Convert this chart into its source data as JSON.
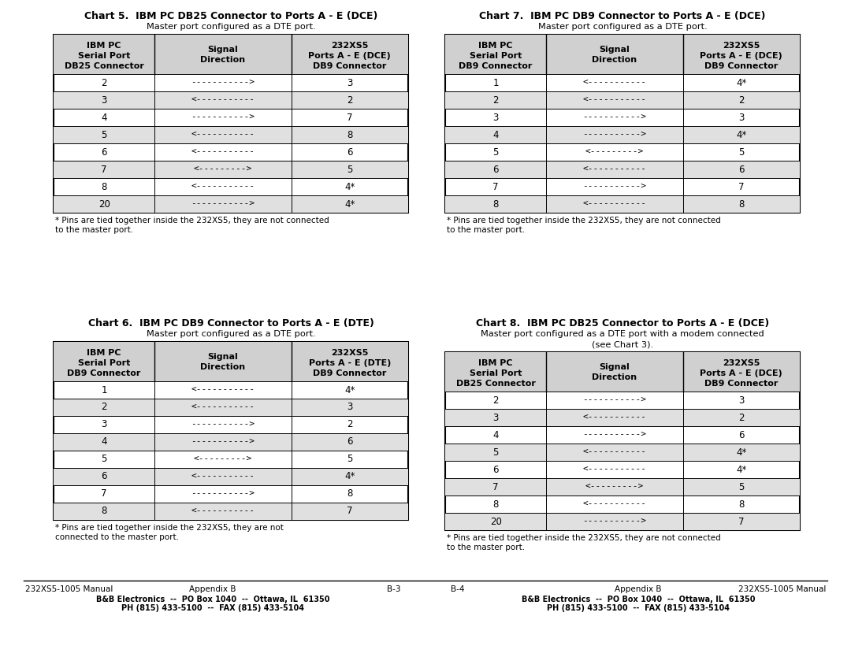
{
  "charts": [
    {
      "title": "Chart 5.  IBM PC DB25 Connector to Ports A - E (DCE)",
      "subtitle": "Master port configured as a DTE port.",
      "subtitle2": "",
      "col1_header": [
        "IBM PC",
        "Serial Port",
        "DB25 Connector"
      ],
      "col2_header": [
        "Signal",
        "Direction"
      ],
      "col3_header": [
        "232XS5",
        "Ports A - E (DCE)",
        "DB9 Connector"
      ],
      "rows": [
        [
          "2",
          "----------->",
          "3"
        ],
        [
          "3",
          "<-----------",
          "2"
        ],
        [
          "4",
          "----------->",
          "7"
        ],
        [
          "5",
          "<-----------",
          "8"
        ],
        [
          "6",
          "<-----------",
          "6"
        ],
        [
          "7",
          "<--------->",
          "5"
        ],
        [
          "8",
          "<-----------",
          "4*"
        ],
        [
          "20",
          "----------->",
          "4*"
        ]
      ],
      "footnote": "* Pins are tied together inside the 232XS5, they are not connected\nto the master port."
    },
    {
      "title": "Chart 6.  IBM PC DB9 Connector to Ports A - E (DTE)",
      "subtitle": "Master port configured as a DTE port.",
      "subtitle2": "",
      "col1_header": [
        "IBM PC",
        "Serial Port",
        "DB9 Connector"
      ],
      "col2_header": [
        "Signal",
        "Direction"
      ],
      "col3_header": [
        "232XS5",
        "Ports A - E (DTE)",
        "DB9 Connector"
      ],
      "rows": [
        [
          "1",
          "<-----------",
          "4*"
        ],
        [
          "2",
          "<-----------",
          "3"
        ],
        [
          "3",
          "----------->",
          "2"
        ],
        [
          "4",
          "----------->",
          "6"
        ],
        [
          "5",
          "<--------->",
          "5"
        ],
        [
          "6",
          "<-----------",
          "4*"
        ],
        [
          "7",
          "----------->",
          "8"
        ],
        [
          "8",
          "<-----------",
          "7"
        ]
      ],
      "footnote": "* Pins are tied together inside the 232XS5, they are not\nconnected to the master port."
    },
    {
      "title": "Chart 7.  IBM PC DB9 Connector to Ports A - E (DCE)",
      "subtitle": "Master port configured as a DTE port.",
      "subtitle2": "",
      "col1_header": [
        "IBM PC",
        "Serial Port",
        "DB9 Connector"
      ],
      "col2_header": [
        "Signal",
        "Direction"
      ],
      "col3_header": [
        "232XS5",
        "Ports A - E (DCE)",
        "DB9 Connector"
      ],
      "rows": [
        [
          "1",
          "<-----------",
          "4*"
        ],
        [
          "2",
          "<-----------",
          "2"
        ],
        [
          "3",
          "----------->",
          "3"
        ],
        [
          "4",
          "----------->",
          "4*"
        ],
        [
          "5",
          "<--------->",
          "5"
        ],
        [
          "6",
          "<-----------",
          "6"
        ],
        [
          "7",
          "----------->",
          "7"
        ],
        [
          "8",
          "<-----------",
          "8"
        ]
      ],
      "footnote": "* Pins are tied together inside the 232XS5, they are not connected\nto the master port."
    },
    {
      "title": "Chart 8.  IBM PC DB25 Connector to Ports A - E (DCE)",
      "subtitle": "Master port configured as a DTE port with a modem connected",
      "subtitle2": "(see Chart 3).",
      "col1_header": [
        "IBM PC",
        "Serial Port",
        "DB25 Connector"
      ],
      "col2_header": [
        "Signal",
        "Direction"
      ],
      "col3_header": [
        "232XS5",
        "Ports A - E (DCE)",
        "DB9 Connector"
      ],
      "rows": [
        [
          "2",
          "----------->",
          "3"
        ],
        [
          "3",
          "<-----------",
          "2"
        ],
        [
          "4",
          "----------->",
          "6"
        ],
        [
          "5",
          "<-----------",
          "4*"
        ],
        [
          "6",
          "<-----------",
          "4*"
        ],
        [
          "7",
          "<--------->",
          "5"
        ],
        [
          "8",
          "<-----------",
          "8"
        ],
        [
          "20",
          "----------->",
          "7"
        ]
      ],
      "footnote": "* Pins are tied together inside the 232XS5, they are not connected\nto the master port."
    }
  ],
  "footer_left_1": "232XS5-1005 Manual",
  "footer_left_2": "Appendix B",
  "footer_left_3": "B-3",
  "footer_right_1": "B-4",
  "footer_right_2": "Appendix B",
  "footer_right_3": "232XS5-1005 Manual",
  "footer_company": "B&B Electronics  --  PO Box 1040  --  Ottawa, IL  61350",
  "footer_phone": "PH (815) 433-5100  --  FAX (815) 433-5104"
}
